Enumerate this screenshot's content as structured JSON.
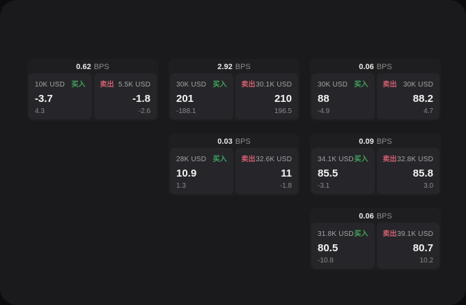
{
  "labels": {
    "bps_unit": "BPS",
    "buy": "买入",
    "sell": "卖出"
  },
  "colors": {
    "buy": "#41a35c",
    "sell": "#cf5f6e",
    "window_bg": "#1a1a1c",
    "card_bg": "#1e1e20",
    "panel_bg": "#26262a"
  },
  "cards": [
    {
      "bps": "0.62",
      "buy": {
        "amount": "10K USD",
        "price": "-3.7",
        "secondary": "4.3"
      },
      "sell": {
        "amount": "5.5K USD",
        "price": "-1.8",
        "secondary": "-2.6"
      }
    },
    {
      "bps": "2.92",
      "buy": {
        "amount": "30K USD",
        "price": "201",
        "secondary": "-188.1"
      },
      "sell": {
        "amount": "30.1K USD",
        "price": "210",
        "secondary": "196.5"
      }
    },
    {
      "bps": "0.06",
      "buy": {
        "amount": "30K USD",
        "price": "88",
        "secondary": "-4.9"
      },
      "sell": {
        "amount": "30K USD",
        "price": "88.2",
        "secondary": "4.7"
      }
    },
    {
      "bps": "0.03",
      "buy": {
        "amount": "28K USD",
        "price": "10.9",
        "secondary": "1.3"
      },
      "sell": {
        "amount": "32.6K USD",
        "price": "11",
        "secondary": "-1.8"
      }
    },
    {
      "bps": "0.09",
      "buy": {
        "amount": "34.1K USD",
        "price": "85.5",
        "secondary": "-3.1"
      },
      "sell": {
        "amount": "32.8K USD",
        "price": "85.8",
        "secondary": "3.0"
      }
    },
    {
      "bps": "0.06",
      "buy": {
        "amount": "31.8K USD",
        "price": "80.5",
        "secondary": "-10.8"
      },
      "sell": {
        "amount": "39.1K USD",
        "price": "80.7",
        "secondary": "10.2"
      }
    }
  ]
}
